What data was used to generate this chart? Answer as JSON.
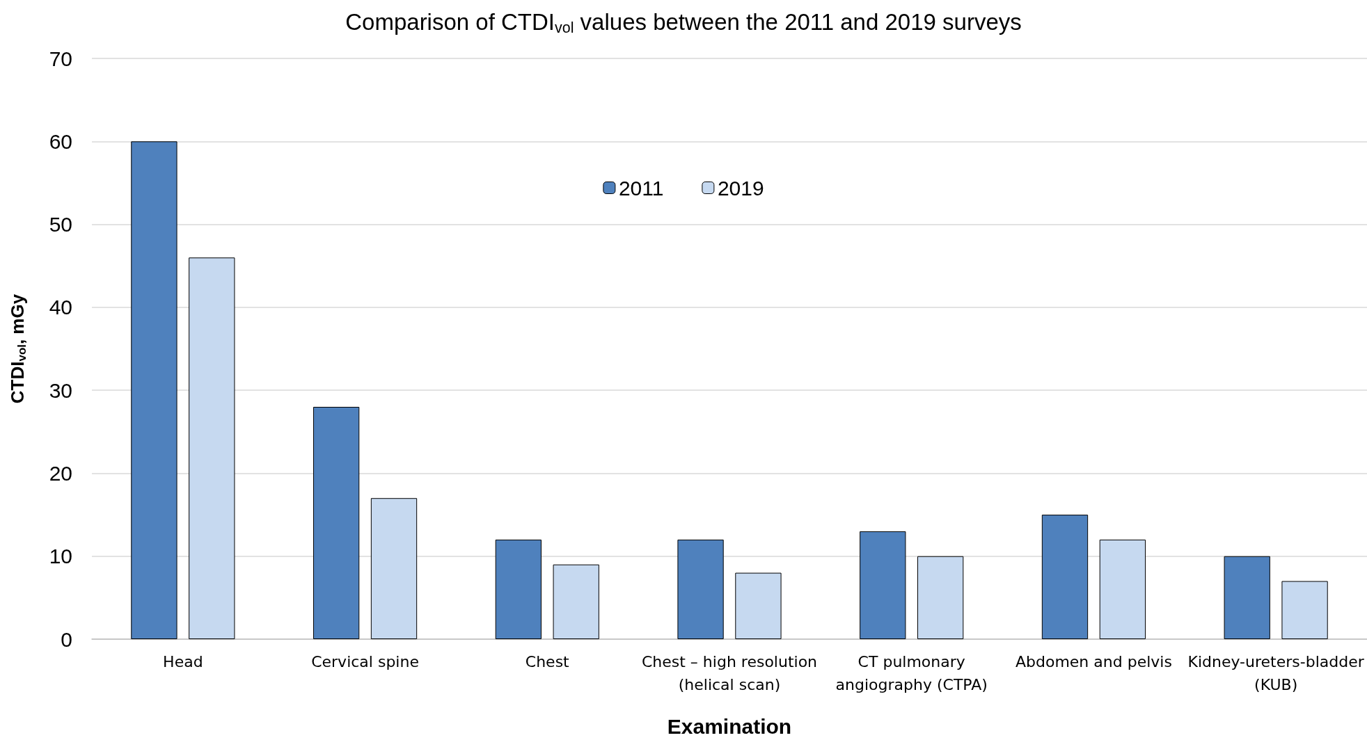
{
  "chart_data": {
    "type": "bar",
    "title": "Comparison of CTDI$_{vol}$ values between the 2011 and 2019 surveys",
    "xlabel": "Examination",
    "ylabel": "CTDI$_{vol}$, mGy",
    "categories": [
      "Head",
      "Cervical spine",
      "Chest",
      "Chest – high resolution\n(helical scan)",
      "CT pulmonary\nangiography (CTPA)",
      "Abdomen and pelvis",
      "Kidney-ureters-bladder\n(KUB)"
    ],
    "series": [
      {
        "name": "2011",
        "color": "#4f81bd",
        "values": [
          60,
          28,
          12,
          12,
          13,
          15,
          10
        ]
      },
      {
        "name": "2019",
        "color": "#c6d9f0",
        "values": [
          46,
          17,
          9,
          8,
          10,
          12,
          7
        ]
      }
    ],
    "ylim": [
      0,
      70
    ],
    "yticks": [
      0,
      10,
      20,
      30,
      40,
      50,
      60,
      70
    ],
    "grid": "y",
    "legend": "top"
  }
}
